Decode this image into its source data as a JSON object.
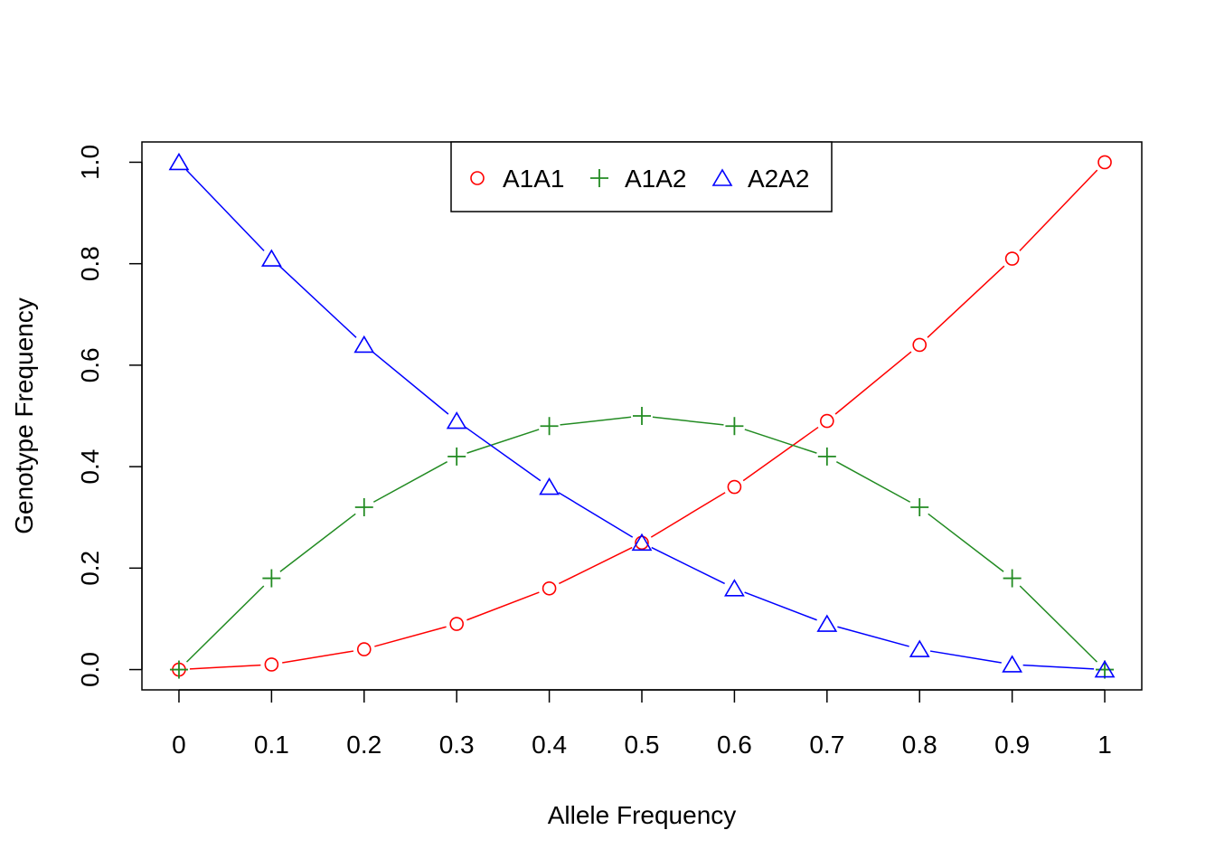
{
  "chart_data": {
    "type": "line",
    "title": "",
    "xlabel": "Allele Frequency",
    "ylabel": "Genotype Frequency",
    "x": [
      0,
      0.1,
      0.2,
      0.3,
      0.4,
      0.5,
      0.6,
      0.7,
      0.8,
      0.9,
      1
    ],
    "x_tick_labels": [
      "0",
      "0.1",
      "0.2",
      "0.3",
      "0.4",
      "0.5",
      "0.6",
      "0.7",
      "0.8",
      "0.9",
      "1"
    ],
    "y_tick_values": [
      0,
      0.2,
      0.4,
      0.6,
      0.8,
      1.0
    ],
    "y_tick_labels": [
      "0.0",
      "0.2",
      "0.4",
      "0.6",
      "0.8",
      "1.0"
    ],
    "xlim": [
      -0.04,
      1.04
    ],
    "ylim": [
      -0.04,
      1.04
    ],
    "grid": false,
    "legend_position": "top-center",
    "series": [
      {
        "name": "A1A1",
        "color": "#ff0000",
        "marker": "circle",
        "values": [
          0,
          0.01,
          0.04,
          0.09,
          0.16,
          0.25,
          0.36,
          0.49,
          0.64,
          0.81,
          1.0
        ]
      },
      {
        "name": "A1A2",
        "color": "#228b22",
        "marker": "plus",
        "values": [
          0,
          0.18,
          0.32,
          0.42,
          0.48,
          0.5,
          0.48,
          0.42,
          0.32,
          0.18,
          0
        ]
      },
      {
        "name": "A2A2",
        "color": "#0000ff",
        "marker": "triangle",
        "values": [
          1.0,
          0.81,
          0.64,
          0.49,
          0.36,
          0.25,
          0.16,
          0.09,
          0.04,
          0.01,
          0
        ]
      }
    ]
  }
}
